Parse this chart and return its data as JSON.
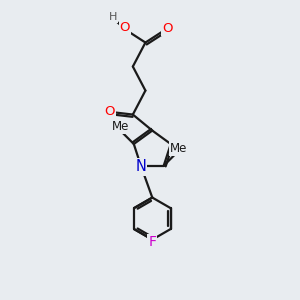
{
  "bg_color": "#e8ecf0",
  "bond_color": "#1a1a1a",
  "bond_width": 1.6,
  "atom_colors": {
    "O": "#ff0000",
    "N": "#0000cc",
    "F": "#cc00cc",
    "H": "#555555",
    "C": "#1a1a1a"
  },
  "font_size": 9.5,
  "fig_size": [
    3.0,
    3.0
  ],
  "dpi": 100
}
